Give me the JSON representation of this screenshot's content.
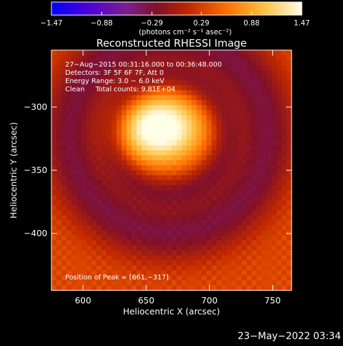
{
  "chart_data": {
    "type": "heatmap",
    "title": "Reconstructed RHESSI Image",
    "xlabel": "Heliocentric X (arcsec)",
    "ylabel": "Heliocentric Y (arcsec)",
    "xlim": [
      575,
      765
    ],
    "ylim": [
      -445,
      -255
    ],
    "x_ticks": [
      600,
      650,
      700,
      750
    ],
    "x_tick_labels": [
      "600",
      "650",
      "700",
      "750"
    ],
    "y_ticks": [
      -300,
      -350,
      -400
    ],
    "y_tick_labels": [
      "−300",
      "−350",
      "−400"
    ],
    "colorbar": {
      "range": [
        -1.47,
        1.47
      ],
      "tick_labels": [
        "−1.47",
        "−0.88",
        "−0.29",
        "0.29",
        "0.88",
        "1.47"
      ],
      "tick_values": [
        -1.47,
        -0.88,
        -0.29,
        0.29,
        0.88,
        1.47
      ],
      "unit_label": "(photons cm⁻² s⁻¹ asec⁻²)",
      "colormap": [
        "#0000ff",
        "#5a00c8",
        "#7a2090",
        "#b01e1e",
        "#e83a00",
        "#ff9a00",
        "#ffe060",
        "#ffffff"
      ]
    },
    "annotations": [
      "27−Aug−2015 00:31:16.000 to 00:36:48.000",
      "Detectors: 3F 5F 6F 7F, Att 0",
      "Energy Range: 3.0 − 6.0 keV",
      "Clean     Total counts: 9.81E+04"
    ],
    "peak_label": "Position of Peak = [661,−317]",
    "peak": [
      661,
      -317
    ],
    "source_model": {
      "core_center": [
        661,
        -317
      ],
      "core_peak_value": 1.47,
      "ring_center": [
        668,
        -322
      ],
      "ring_radius": 78,
      "ring_value": -0.6,
      "background_value": 0.35
    },
    "grid": false
  },
  "footer": {
    "timestamp": "23−May−2022 03:34"
  }
}
